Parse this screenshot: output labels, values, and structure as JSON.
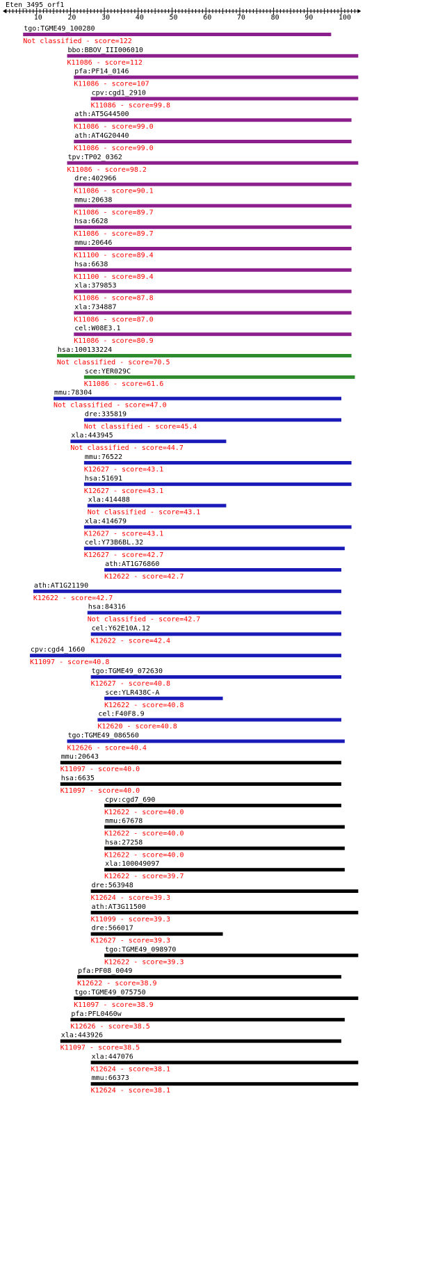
{
  "query": "Eten_3495_orf1",
  "ruler": {
    "min": 0,
    "max": 105,
    "tick_labels": [
      10,
      20,
      30,
      40,
      50,
      60,
      70,
      80,
      90,
      100
    ]
  },
  "colors": {
    "purple": "#8b1f8b",
    "green": "#2e8b2e",
    "blue": "#1a1ab8",
    "black": "#000000",
    "score_text": "#ff0000",
    "name_text": "#000000"
  },
  "hits": [
    {
      "name": "tgo:TGME49_100280",
      "label": "Not classified - score=122",
      "start": 6,
      "end": 97,
      "color": "purple"
    },
    {
      "name": "bbo:BBOV_III006010",
      "label": "K11086 - score=112",
      "start": 19,
      "end": 105,
      "color": "purple"
    },
    {
      "name": "pfa:PF14_0146",
      "label": "K11086 - score=107",
      "start": 21,
      "end": 105,
      "color": "purple"
    },
    {
      "name": "cpv:cgd1_2910",
      "label": "K11086 - score=99.8",
      "start": 26,
      "end": 105,
      "color": "purple"
    },
    {
      "name": "ath:AT5G44500",
      "label": "K11086 - score=99.0",
      "start": 21,
      "end": 103,
      "color": "purple"
    },
    {
      "name": "ath:AT4G20440",
      "label": "K11086 - score=99.0",
      "start": 21,
      "end": 103,
      "color": "purple"
    },
    {
      "name": "tpv:TP02_0362",
      "label": "K11086 - score=98.2",
      "start": 19,
      "end": 105,
      "color": "purple"
    },
    {
      "name": "dre:402966",
      "label": "K11086 - score=90.1",
      "start": 21,
      "end": 103,
      "color": "purple"
    },
    {
      "name": "mmu:20638",
      "label": "K11086 - score=89.7",
      "start": 21,
      "end": 103,
      "color": "purple"
    },
    {
      "name": "hsa:6628",
      "label": "K11086 - score=89.7",
      "start": 21,
      "end": 103,
      "color": "purple"
    },
    {
      "name": "mmu:20646",
      "label": "K11100 - score=89.4",
      "start": 21,
      "end": 103,
      "color": "purple"
    },
    {
      "name": "hsa:6638",
      "label": "K11100 - score=89.4",
      "start": 21,
      "end": 103,
      "color": "purple"
    },
    {
      "name": "xla:379853",
      "label": "K11086 - score=87.8",
      "start": 21,
      "end": 103,
      "color": "purple"
    },
    {
      "name": "xla:734887",
      "label": "K11086 - score=87.0",
      "start": 21,
      "end": 103,
      "color": "purple"
    },
    {
      "name": "cel:W08E3.1",
      "label": "K11086 - score=80.9",
      "start": 21,
      "end": 103,
      "color": "purple"
    },
    {
      "name": "hsa:100133224",
      "label": "Not classified - score=70.5",
      "start": 16,
      "end": 103,
      "color": "green"
    },
    {
      "name": "sce:YER029C",
      "label": "K11086 - score=61.6",
      "start": 24,
      "end": 104,
      "color": "green"
    },
    {
      "name": "mmu:78304",
      "label": "Not classified - score=47.0",
      "start": 15,
      "end": 100,
      "color": "blue"
    },
    {
      "name": "dre:335819",
      "label": "Not classified - score=45.4",
      "start": 24,
      "end": 100,
      "color": "blue"
    },
    {
      "name": "xla:443945",
      "label": "Not classified - score=44.7",
      "start": 20,
      "end": 66,
      "color": "blue"
    },
    {
      "name": "mmu:76522",
      "label": "K12627 - score=43.1",
      "start": 24,
      "end": 103,
      "color": "blue"
    },
    {
      "name": "hsa:51691",
      "label": "K12627 - score=43.1",
      "start": 24,
      "end": 103,
      "color": "blue"
    },
    {
      "name": "xla:414488",
      "label": "Not classified - score=43.1",
      "start": 25,
      "end": 66,
      "color": "blue"
    },
    {
      "name": "xla:414679",
      "label": "K12627 - score=43.1",
      "start": 24,
      "end": 103,
      "color": "blue"
    },
    {
      "name": "cel:Y73B6BL.32",
      "label": "K12627 - score=42.7",
      "start": 24,
      "end": 101,
      "color": "blue"
    },
    {
      "name": "ath:AT1G76860",
      "label": "K12622 - score=42.7",
      "start": 30,
      "end": 100,
      "color": "blue"
    },
    {
      "name": "ath:AT1G21190",
      "label": "K12622 - score=42.7",
      "start": 9,
      "end": 100,
      "color": "blue"
    },
    {
      "name": "hsa:84316",
      "label": "Not classified - score=42.7",
      "start": 25,
      "end": 100,
      "color": "blue"
    },
    {
      "name": "cel:Y62E10A.12",
      "label": "K12622 - score=42.4",
      "start": 26,
      "end": 100,
      "color": "blue"
    },
    {
      "name": "cpv:cgd4_1660",
      "label": "K11097 - score=40.8",
      "start": 8,
      "end": 100,
      "color": "blue"
    },
    {
      "name": "tgo:TGME49_072630",
      "label": "K12627 - score=40.8",
      "start": 26,
      "end": 100,
      "color": "blue"
    },
    {
      "name": "sce:YLR438C-A",
      "label": "K12622 - score=40.8",
      "start": 30,
      "end": 65,
      "color": "blue"
    },
    {
      "name": "cel:F40F8.9",
      "label": "K12620 - score=40.8",
      "start": 28,
      "end": 100,
      "color": "blue"
    },
    {
      "name": "tgo:TGME49_086560",
      "label": "K12626 - score=40.4",
      "start": 19,
      "end": 101,
      "color": "blue"
    },
    {
      "name": "mmu:20643",
      "label": "K11097 - score=40.0",
      "start": 17,
      "end": 100,
      "color": "black"
    },
    {
      "name": "hsa:6635",
      "label": "K11097 - score=40.0",
      "start": 17,
      "end": 100,
      "color": "black"
    },
    {
      "name": "cpv:cgd7_690",
      "label": "K12622 - score=40.0",
      "start": 30,
      "end": 100,
      "color": "black"
    },
    {
      "name": "mmu:67678",
      "label": "K12622 - score=40.0",
      "start": 30,
      "end": 101,
      "color": "black"
    },
    {
      "name": "hsa:27258",
      "label": "K12622 - score=40.0",
      "start": 30,
      "end": 101,
      "color": "black"
    },
    {
      "name": "xla:100049097",
      "label": "K12622 - score=39.7",
      "start": 30,
      "end": 101,
      "color": "black"
    },
    {
      "name": "dre:563948",
      "label": "K12624 - score=39.3",
      "start": 26,
      "end": 105,
      "color": "black"
    },
    {
      "name": "ath:AT3G11500",
      "label": "K11099 - score=39.3",
      "start": 26,
      "end": 105,
      "color": "black"
    },
    {
      "name": "dre:566017",
      "label": "K12627 - score=39.3",
      "start": 26,
      "end": 65,
      "color": "black"
    },
    {
      "name": "tgo:TGME49_098970",
      "label": "K12622 - score=39.3",
      "start": 30,
      "end": 105,
      "color": "black"
    },
    {
      "name": "pfa:PF08_0049",
      "label": "K12622 - score=38.9",
      "start": 22,
      "end": 100,
      "color": "black"
    },
    {
      "name": "tgo:TGME49_075750",
      "label": "K11097 - score=38.9",
      "start": 21,
      "end": 105,
      "color": "black"
    },
    {
      "name": "pfa:PFL0460w",
      "label": "K12626 - score=38.5",
      "start": 20,
      "end": 101,
      "color": "black"
    },
    {
      "name": "xla:443926",
      "label": "K11097 - score=38.5",
      "start": 17,
      "end": 100,
      "color": "black"
    },
    {
      "name": "xla:447076",
      "label": "K12624 - score=38.1",
      "start": 26,
      "end": 105,
      "color": "black"
    },
    {
      "name": "mmu:66373",
      "label": "K12624 - score=38.1",
      "start": 26,
      "end": 105,
      "color": "black"
    }
  ]
}
